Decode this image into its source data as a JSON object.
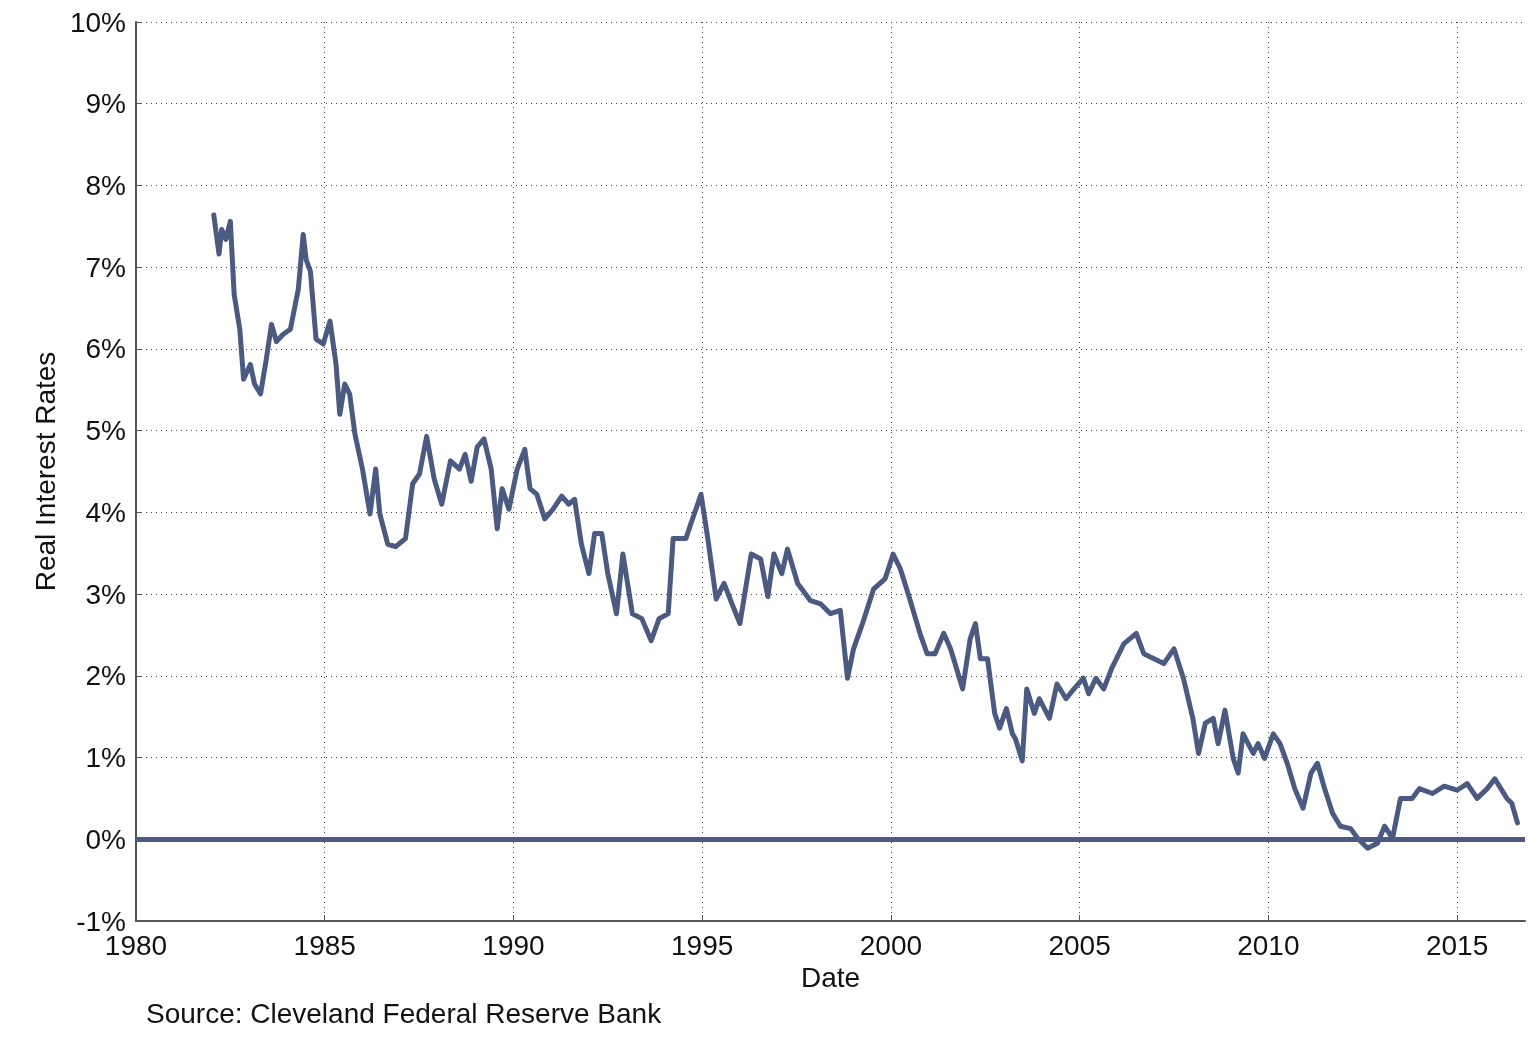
{
  "chart_data": {
    "type": "line",
    "xlabel": "Date",
    "ylabel": "Real Interest Rates",
    "annotations": [
      "Source: Cleveland Federal Reserve Bank"
    ],
    "xlim": [
      1980,
      2016.8
    ],
    "xticks": [
      1980,
      1985,
      1990,
      1995,
      2000,
      2005,
      2010,
      2015
    ],
    "ylim": [
      -1,
      10
    ],
    "yticks": [
      {
        "value": -1,
        "label": "-1%"
      },
      {
        "value": 0,
        "label": "0%"
      },
      {
        "value": 1,
        "label": "1%"
      },
      {
        "value": 2,
        "label": "2%"
      },
      {
        "value": 3,
        "label": "3%"
      },
      {
        "value": 4,
        "label": "4%"
      },
      {
        "value": 5,
        "label": "5%"
      },
      {
        "value": 6,
        "label": "6%"
      },
      {
        "value": 7,
        "label": "7%"
      },
      {
        "value": 8,
        "label": "8%"
      },
      {
        "value": 9,
        "label": "9%"
      },
      {
        "value": 10,
        "label": "10%"
      }
    ],
    "grid": true,
    "marker": "none",
    "line_style": "solid",
    "ref_lines": [
      {
        "axis": "y",
        "value": 0,
        "color": "#4a5a80"
      }
    ],
    "series": [
      {
        "color": "#4a5a80",
        "x": [
          1982.06,
          1982.2,
          1982.27,
          1982.38,
          1982.5,
          1982.6,
          1982.75,
          1982.85,
          1983.03,
          1983.14,
          1983.3,
          1983.45,
          1983.59,
          1983.72,
          1983.9,
          1984.09,
          1984.3,
          1984.43,
          1984.51,
          1984.62,
          1984.77,
          1984.96,
          1985.14,
          1985.3,
          1985.4,
          1985.53,
          1985.66,
          1985.8,
          1986.0,
          1986.2,
          1986.35,
          1986.46,
          1986.67,
          1986.88,
          1987.14,
          1987.33,
          1987.51,
          1987.7,
          1987.9,
          1988.1,
          1988.33,
          1988.57,
          1988.72,
          1988.88,
          1989.04,
          1989.22,
          1989.41,
          1989.57,
          1989.7,
          1989.88,
          1990.1,
          1990.3,
          1990.44,
          1990.62,
          1990.83,
          1991.05,
          1991.28,
          1991.46,
          1991.62,
          1991.8,
          1992.0,
          1992.15,
          1992.34,
          1992.5,
          1992.73,
          1992.9,
          1993.15,
          1993.4,
          1993.65,
          1993.86,
          1994.1,
          1994.23,
          1994.57,
          1994.7,
          1994.97,
          1995.15,
          1995.37,
          1995.58,
          1995.79,
          1996.0,
          1996.3,
          1996.55,
          1996.74,
          1996.9,
          1997.11,
          1997.26,
          1997.53,
          1997.87,
          1998.14,
          1998.4,
          1998.66,
          1998.85,
          1999.01,
          1999.27,
          1999.54,
          1999.85,
          2000.06,
          2000.25,
          2000.5,
          2000.77,
          2000.96,
          2001.17,
          2001.4,
          2001.58,
          2001.7,
          2001.9,
          2002.1,
          2002.24,
          2002.37,
          2002.56,
          2002.75,
          2002.88,
          2003.06,
          2003.22,
          2003.3,
          2003.48,
          2003.6,
          2003.8,
          2003.93,
          2004.2,
          2004.4,
          2004.64,
          2004.85,
          2005.1,
          2005.24,
          2005.43,
          2005.64,
          2005.85,
          2006.17,
          2006.5,
          2006.7,
          2006.97,
          2007.23,
          2007.5,
          2007.75,
          2008.0,
          2008.15,
          2008.33,
          2008.54,
          2008.67,
          2008.85,
          2009.07,
          2009.2,
          2009.33,
          2009.6,
          2009.73,
          2009.9,
          2010.13,
          2010.31,
          2010.5,
          2010.7,
          2010.92,
          2011.13,
          2011.3,
          2011.49,
          2011.7,
          2011.91,
          2012.18,
          2012.37,
          2012.63,
          2012.89,
          2013.08,
          2013.29,
          2013.5,
          2013.81,
          2014.0,
          2014.35,
          2014.66,
          2015.0,
          2015.27,
          2015.53,
          2015.8,
          2016.0,
          2016.32,
          2016.45,
          2016.6
        ],
        "values": [
          7.64,
          7.16,
          7.46,
          7.34,
          7.56,
          6.67,
          6.24,
          5.63,
          5.81,
          5.57,
          5.45,
          5.87,
          6.3,
          6.09,
          6.18,
          6.24,
          6.73,
          7.4,
          7.09,
          6.95,
          6.12,
          6.06,
          6.34,
          5.81,
          5.2,
          5.57,
          5.45,
          4.96,
          4.53,
          3.98,
          4.53,
          3.98,
          3.61,
          3.58,
          3.68,
          4.35,
          4.47,
          4.93,
          4.41,
          4.1,
          4.63,
          4.53,
          4.71,
          4.38,
          4.8,
          4.9,
          4.53,
          3.8,
          4.29,
          4.04,
          4.53,
          4.77,
          4.29,
          4.22,
          3.92,
          4.04,
          4.2,
          4.1,
          4.16,
          3.61,
          3.25,
          3.74,
          3.74,
          3.25,
          2.76,
          3.49,
          2.76,
          2.7,
          2.43,
          2.7,
          2.76,
          3.68,
          3.68,
          3.86,
          4.22,
          3.68,
          2.94,
          3.13,
          2.88,
          2.64,
          3.49,
          3.43,
          2.97,
          3.49,
          3.25,
          3.55,
          3.13,
          2.92,
          2.88,
          2.76,
          2.8,
          1.97,
          2.33,
          2.67,
          3.06,
          3.19,
          3.49,
          3.31,
          2.94,
          2.52,
          2.27,
          2.27,
          2.52,
          2.33,
          2.15,
          1.84,
          2.45,
          2.64,
          2.21,
          2.21,
          1.54,
          1.36,
          1.6,
          1.29,
          1.23,
          0.96,
          1.84,
          1.54,
          1.72,
          1.48,
          1.9,
          1.72,
          1.84,
          1.97,
          1.78,
          1.97,
          1.84,
          2.09,
          2.39,
          2.52,
          2.27,
          2.21,
          2.15,
          2.33,
          1.97,
          1.48,
          1.05,
          1.42,
          1.48,
          1.17,
          1.58,
          0.99,
          0.81,
          1.29,
          1.05,
          1.17,
          0.99,
          1.29,
          1.17,
          0.93,
          0.62,
          0.38,
          0.81,
          0.93,
          0.62,
          0.32,
          0.16,
          0.13,
          0.01,
          -0.11,
          -0.05,
          0.16,
          0.01,
          0.5,
          0.5,
          0.62,
          0.56,
          0.65,
          0.6,
          0.68,
          0.5,
          0.62,
          0.74,
          0.5,
          0.44,
          0.2
        ]
      }
    ]
  }
}
